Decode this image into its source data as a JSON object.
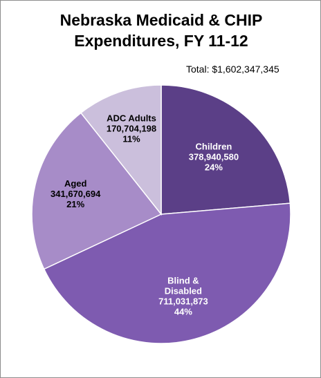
{
  "chart_data": {
    "type": "pie",
    "title_lines": [
      "Nebraska  Medicaid & CHIP",
      "Expenditures, FY 11-12"
    ],
    "total_label": "Total:  $1,602,347,345",
    "slices": [
      {
        "label_lines": [
          "Children"
        ],
        "value_text": "378,940,580",
        "percent_text": "24%",
        "value": 378940580,
        "color": "#5b3f87",
        "label_color": "#ffffff"
      },
      {
        "label_lines": [
          "Blind &",
          "Disabled"
        ],
        "value_text": "711,031,873",
        "percent_text": "44%",
        "value": 711031873,
        "color": "#7e5bb0",
        "label_color": "#ffffff"
      },
      {
        "label_lines": [
          "Aged"
        ],
        "value_text": "341,670,694",
        "percent_text": "21%",
        "value": 341670694,
        "color": "#a78cc8",
        "label_color": "#000000"
      },
      {
        "label_lines": [
          "ADC Adults"
        ],
        "value_text": "170,704,198",
        "percent_text": "11%",
        "value": 170704198,
        "color": "#cbbfdc",
        "label_color": "#000000"
      }
    ]
  }
}
